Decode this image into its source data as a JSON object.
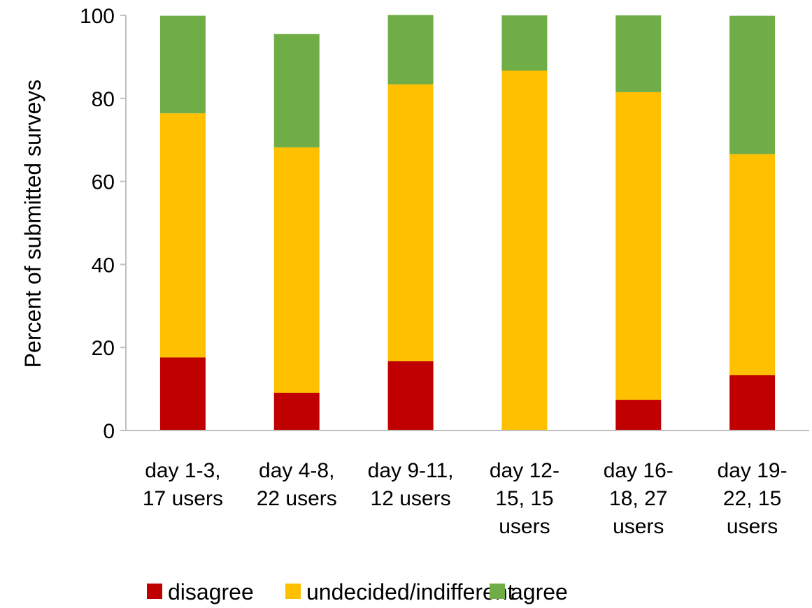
{
  "chart_data": {
    "type": "bar",
    "stacked": true,
    "ylabel": "Percent of submitted surveys",
    "xlabel": "",
    "ylim": [
      0,
      100
    ],
    "yticks": [
      0,
      20,
      40,
      60,
      80,
      100
    ],
    "grid": false,
    "legend_position": "bottom",
    "categories": [
      [
        "day 1-3,",
        "17 users"
      ],
      [
        "day 4-8,",
        "22 users"
      ],
      [
        "day 9-11,",
        "12 users"
      ],
      [
        "day 12-",
        "15, 15",
        "users"
      ],
      [
        "day 16-",
        "18, 27",
        "users"
      ],
      [
        "day 19-",
        "22, 15",
        "users"
      ]
    ],
    "series": [
      {
        "name": "disagree",
        "color": "#C00000",
        "values": [
          17.6,
          9.1,
          16.7,
          0,
          7.4,
          13.3
        ]
      },
      {
        "name": "undecided/indifferent",
        "color": "#FFC000",
        "values": [
          58.8,
          59.1,
          66.7,
          86.7,
          74.1,
          53.3
        ]
      },
      {
        "name": "agree",
        "color": "#70AD47",
        "values": [
          23.5,
          27.3,
          16.7,
          13.3,
          18.5,
          33.3
        ]
      }
    ]
  }
}
